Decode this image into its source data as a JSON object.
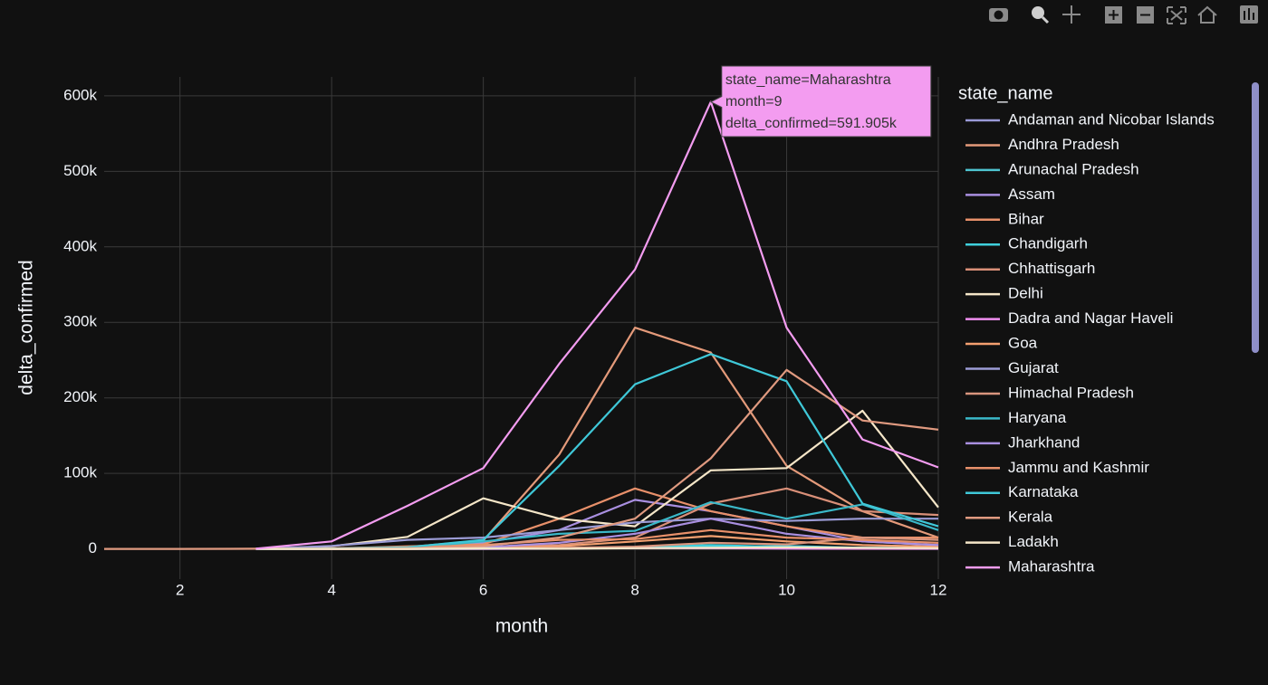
{
  "chart_data": {
    "type": "line",
    "x_label": "month",
    "y_label": "delta_confirmed",
    "legend_title": "state_name",
    "x": [
      1,
      2,
      3,
      4,
      5,
      6,
      7,
      8,
      9,
      10,
      11,
      12
    ],
    "xlim": [
      1,
      12
    ],
    "xticks": [
      2,
      4,
      6,
      8,
      10,
      12
    ],
    "ylim": [
      -40000,
      625000
    ],
    "yticks": [
      0,
      {
        "value": 100000,
        "label": "100k"
      },
      {
        "value": 200000,
        "label": "200k"
      },
      {
        "value": 300000,
        "label": "300k"
      },
      {
        "value": 400000,
        "label": "400k"
      },
      {
        "value": 500000,
        "label": "500k"
      },
      {
        "value": 600000,
        "label": "600k"
      }
    ],
    "grid": true,
    "series": [
      {
        "name": "Andaman and Nicobar Islands",
        "color": "#9a9ad8",
        "values": [
          null,
          null,
          0,
          10,
          20,
          50,
          200,
          1500,
          1200,
          600,
          300,
          150
        ]
      },
      {
        "name": "Andhra Pradesh",
        "color": "#e49a7a",
        "values": [
          null,
          null,
          0,
          1000,
          2500,
          11000,
          125000,
          293000,
          260000,
          110000,
          50000,
          15000
        ]
      },
      {
        "name": "Arunachal Pradesh",
        "color": "#4ec4d0",
        "values": [
          null,
          null,
          0,
          0,
          10,
          150,
          1200,
          2000,
          3000,
          4000,
          1500,
          600
        ]
      },
      {
        "name": "Assam",
        "color": "#a98fe0",
        "values": [
          null,
          null,
          0,
          30,
          700,
          8000,
          25000,
          65000,
          50000,
          30000,
          10000,
          5000
        ]
      },
      {
        "name": "Bihar",
        "color": "#e8906a",
        "values": [
          null,
          null,
          0,
          400,
          3500,
          6000,
          40000,
          80000,
          50000,
          30000,
          15000,
          15000
        ]
      },
      {
        "name": "Chandigarh",
        "color": "#3fd0dc",
        "values": [
          null,
          null,
          0,
          50,
          250,
          150,
          600,
          2500,
          5000,
          2500,
          1500,
          1500
        ]
      },
      {
        "name": "Chhattisgarh",
        "color": "#d98f78",
        "values": [
          null,
          null,
          0,
          30,
          400,
          2000,
          5000,
          15000,
          60000,
          80000,
          50000,
          45000
        ]
      },
      {
        "name": "Delhi",
        "color": "#f5e6c8",
        "values": [
          null,
          null,
          0,
          3500,
          16000,
          67000,
          40000,
          30000,
          104000,
          107000,
          183000,
          55000
        ]
      },
      {
        "name": "Dadra and Nagar Haveli",
        "color": "#f08ef0",
        "values": [
          null,
          null,
          null,
          0,
          5,
          100,
          600,
          1200,
          1000,
          500,
          300,
          200
        ]
      },
      {
        "name": "Goa",
        "color": "#f4a070",
        "values": [
          null,
          null,
          0,
          7,
          60,
          1200,
          3500,
          10000,
          17000,
          10000,
          5000,
          3000
        ]
      },
      {
        "name": "Gujarat",
        "color": "#9c9cd6",
        "values": [
          null,
          null,
          0,
          4000,
          12000,
          15000,
          25000,
          35000,
          40000,
          37000,
          40000,
          40000
        ]
      },
      {
        "name": "Himachal Pradesh",
        "color": "#d9957e",
        "values": [
          null,
          null,
          0,
          40,
          200,
          600,
          1500,
          3000,
          8000,
          6000,
          15000,
          12000
        ]
      },
      {
        "name": "Haryana",
        "color": "#3ab8c8",
        "values": [
          null,
          null,
          0,
          300,
          1500,
          10000,
          20000,
          24000,
          62000,
          40000,
          59000,
          25000
        ]
      },
      {
        "name": "Jharkhand",
        "color": "#a98fe0",
        "values": [
          null,
          null,
          0,
          100,
          500,
          2000,
          8000,
          20000,
          40000,
          20000,
          10000,
          5000
        ]
      },
      {
        "name": "Jammu and Kashmir",
        "color": "#e8906a",
        "values": [
          null,
          null,
          0,
          600,
          2000,
          5000,
          12000,
          13000,
          25000,
          15000,
          12000,
          8000
        ]
      },
      {
        "name": "Karnataka",
        "color": "#3fc8d8",
        "values": [
          null,
          null,
          0,
          500,
          2000,
          12000,
          110000,
          218000,
          258000,
          222000,
          60000,
          30000
        ]
      },
      {
        "name": "Kerala",
        "color": "#e09a80",
        "values": [
          1,
          2,
          250,
          200,
          800,
          3500,
          15000,
          40000,
          120000,
          237000,
          170000,
          158000
        ]
      },
      {
        "name": "Ladakh",
        "color": "#f5e6c8",
        "values": [
          null,
          null,
          10,
          10,
          30,
          900,
          200,
          1000,
          1500,
          2000,
          1500,
          1000
        ]
      },
      {
        "name": "Maharashtra",
        "color": "#f39cf0",
        "values": [
          null,
          null,
          300,
          10000,
          57000,
          107000,
          245000,
          370000,
          591905,
          293000,
          145000,
          108000
        ]
      }
    ],
    "tooltip": {
      "lines": [
        "state_name=Maharashtra",
        "month=9",
        "delta_confirmed=591.905k"
      ]
    }
  }
}
